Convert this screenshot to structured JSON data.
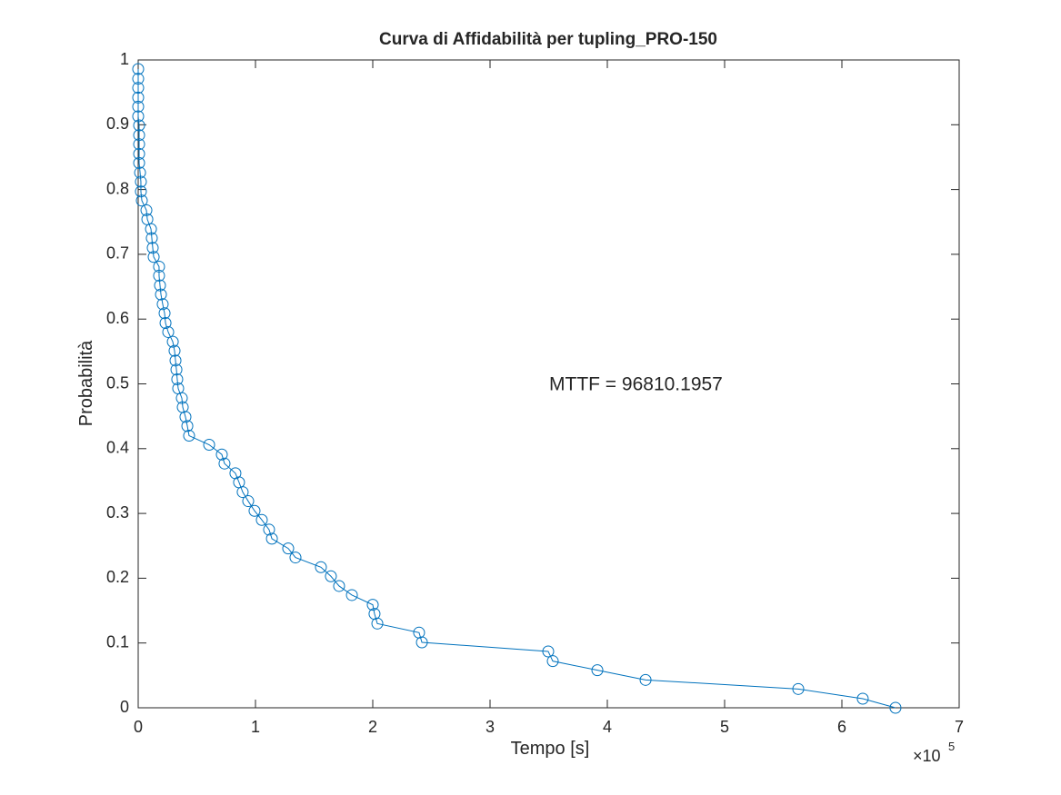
{
  "chart_data": {
    "type": "line",
    "title": "Curva di Affidabilità per tupling_PRO-150",
    "x_label": "Tempo [s]",
    "y_label": "Probabilità",
    "x_exponent": {
      "base": "×10",
      "power": "5"
    },
    "annotation": "MTTF = 96810.1957",
    "marker": "circle",
    "grid": false,
    "box": true,
    "xlim": [
      0,
      700000
    ],
    "ylim": [
      0,
      1
    ],
    "xticks": [
      0,
      {
        "value": 100000,
        "label": "1"
      },
      {
        "value": 200000,
        "label": "2"
      },
      {
        "value": 300000,
        "label": "3"
      },
      {
        "value": 400000,
        "label": "4"
      },
      {
        "value": 500000,
        "label": "5"
      },
      {
        "value": 600000,
        "label": "6"
      },
      {
        "value": 700000,
        "label": "7"
      }
    ],
    "yticks": [
      0,
      0.1,
      0.2,
      0.3,
      0.4,
      0.5,
      0.6,
      0.7,
      0.8,
      0.9,
      1
    ],
    "series": [
      {
        "color": "#0072bd",
        "x": [
          0,
          0,
          0,
          0,
          0,
          0,
          800,
          800,
          800,
          800,
          800,
          1600,
          2300,
          2300,
          3100,
          7000,
          7800,
          10900,
          11600,
          12400,
          13200,
          17800,
          17800,
          18600,
          19400,
          20900,
          22500,
          23300,
          25600,
          29500,
          31000,
          31800,
          32600,
          33300,
          34100,
          37200,
          38000,
          40300,
          41900,
          43400,
          60500,
          71300,
          73600,
          82900,
          86000,
          89100,
          93800,
          99200,
          105400,
          111600,
          114000,
          127900,
          134100,
          155800,
          164300,
          171300,
          182200,
          200000,
          201500,
          203900,
          239500,
          241900,
          349600,
          353500,
          391500,
          432600,
          562800,
          617800,
          645700
        ],
        "values": [
          0.986,
          0.971,
          0.957,
          0.942,
          0.928,
          0.913,
          0.899,
          0.884,
          0.87,
          0.855,
          0.841,
          0.826,
          0.812,
          0.797,
          0.783,
          0.768,
          0.754,
          0.739,
          0.725,
          0.71,
          0.696,
          0.681,
          0.667,
          0.652,
          0.638,
          0.623,
          0.609,
          0.594,
          0.58,
          0.565,
          0.551,
          0.536,
          0.522,
          0.507,
          0.493,
          0.478,
          0.464,
          0.449,
          0.435,
          0.42,
          0.406,
          0.391,
          0.377,
          0.362,
          0.348,
          0.333,
          0.319,
          0.304,
          0.29,
          0.275,
          0.261,
          0.246,
          0.232,
          0.217,
          0.203,
          0.188,
          0.174,
          0.159,
          0.145,
          0.13,
          0.116,
          0.101,
          0.087,
          0.072,
          0.058,
          0.043,
          0.029,
          0.014,
          0
        ]
      }
    ]
  }
}
